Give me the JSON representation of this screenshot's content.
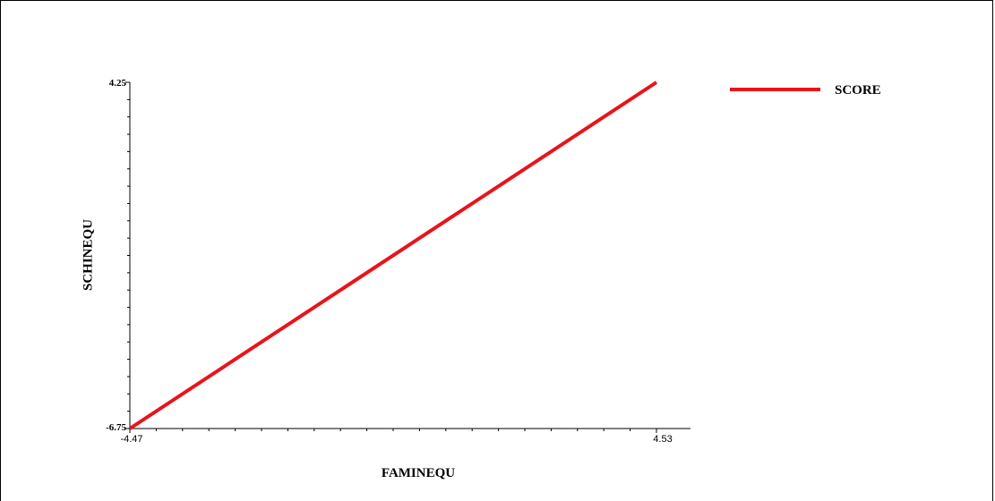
{
  "chart_data": {
    "type": "line",
    "title": "",
    "xlabel": "FAMINEQU",
    "ylabel": "SCHINEQU",
    "xlim": [
      -4.47,
      4.53
    ],
    "ylim": [
      -6.75,
      4.25
    ],
    "x_tick_labels": [
      "-4.47",
      "4.53"
    ],
    "y_tick_labels": [
      "4.25",
      "-6.75"
    ],
    "grid": false,
    "legend_position": "top-right",
    "series": [
      {
        "name": "SCORE",
        "color": "#e8141b",
        "x": [
          -4.47,
          4.53
        ],
        "y": [
          -6.75,
          4.25
        ]
      }
    ]
  }
}
